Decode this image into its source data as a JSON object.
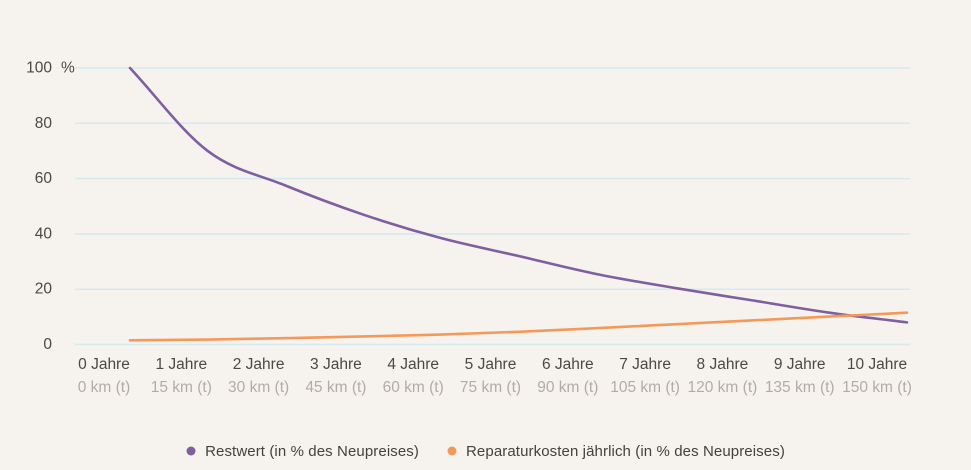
{
  "colors": {
    "background": "#f6f2ee",
    "grid": "#d4eaf1",
    "axis_text": "#4b4846",
    "axis_text_secondary": "#b3aca6",
    "legend_text": "#45413e"
  },
  "chart_data": {
    "type": "line",
    "x_axis": {
      "primary_labels": [
        "0 Jahre",
        "1 Jahre",
        "2 Jahre",
        "3 Jahre",
        "4 Jahre",
        "5 Jahre",
        "6 Jahre",
        "7 Jahre",
        "8 Jahre",
        "9 Jahre",
        "10 Jahre"
      ],
      "secondary_labels": [
        "0 km (t)",
        "15 km (t)",
        "30 km (t)",
        "45 km (t)",
        "60 km (t)",
        "75 km (t)",
        "90 km (t)",
        "105 km (t)",
        "120 km (t)",
        "135 km (t)",
        "150 km (t)"
      ]
    },
    "y_axis": {
      "unit": "%",
      "ticks": [
        0,
        20,
        40,
        60,
        80,
        100
      ],
      "range": [
        0,
        100
      ],
      "grid": true
    },
    "series": [
      {
        "name": "Restwert (in % des Neupreises)",
        "color": "#7e5f9f",
        "values": [
          100,
          70,
          57.5,
          47,
          38.5,
          32,
          25.5,
          20.5,
          16,
          11.5,
          8
        ]
      },
      {
        "name": "Reparaturkosten jährlich (in % des Neupreises)",
        "color": "#f5995a",
        "values": [
          1.5,
          1.8,
          2.3,
          2.9,
          3.6,
          4.6,
          5.9,
          7.3,
          8.7,
          10.1,
          11.5
        ]
      }
    ],
    "legend_position": "bottom"
  }
}
